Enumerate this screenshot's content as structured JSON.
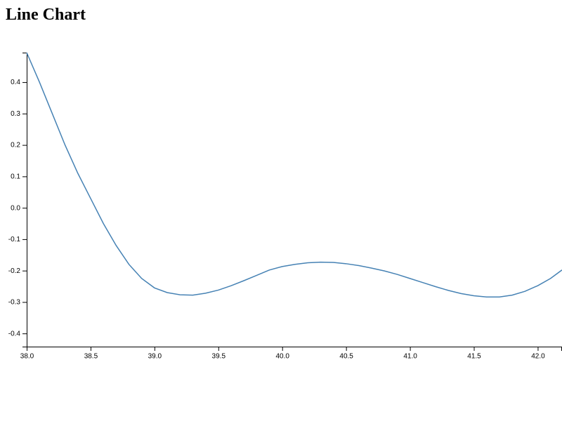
{
  "chart_data": {
    "type": "line",
    "title": "Line Chart",
    "x": [
      38.0,
      38.1,
      38.2,
      38.3,
      38.4,
      38.5,
      38.6,
      38.7,
      38.8,
      38.9,
      39.0,
      39.1,
      39.2,
      39.3,
      39.4,
      39.5,
      39.6,
      39.7,
      39.8,
      39.9,
      40.0,
      40.1,
      40.2,
      40.3,
      40.4,
      40.5,
      40.6,
      40.7,
      40.8,
      40.9,
      41.0,
      41.1,
      41.2,
      41.3,
      41.4,
      41.5,
      41.6,
      41.7,
      41.8,
      41.9,
      42.0,
      42.1,
      42.19
    ],
    "series": [
      {
        "color": "#4682b4",
        "values": [
          0.494,
          0.4,
          0.3,
          0.2,
          0.11,
          0.03,
          -0.05,
          -0.12,
          -0.18,
          -0.225,
          -0.255,
          -0.27,
          -0.277,
          -0.278,
          -0.272,
          -0.262,
          -0.248,
          -0.232,
          -0.215,
          -0.198,
          -0.187,
          -0.18,
          -0.175,
          -0.173,
          -0.174,
          -0.178,
          -0.184,
          -0.192,
          -0.201,
          -0.212,
          -0.225,
          -0.238,
          -0.251,
          -0.263,
          -0.273,
          -0.28,
          -0.284,
          -0.284,
          -0.278,
          -0.266,
          -0.248,
          -0.225,
          -0.198
        ]
      }
    ],
    "xlim": [
      38.0,
      42.19
    ],
    "xticks": [
      {
        "value": 38.0,
        "label": "38.0"
      },
      38.5,
      {
        "value": 39.0,
        "label": "39.0"
      },
      39.5,
      {
        "value": 40.0,
        "label": "40.0"
      },
      40.5,
      {
        "value": 41.0,
        "label": "41.0"
      },
      41.5,
      {
        "value": 42.0,
        "label": "42.0"
      }
    ],
    "ylim": [
      -0.442,
      0.494
    ],
    "yticks": [
      -0.4,
      -0.3,
      -0.2,
      -0.1,
      {
        "value": 0,
        "label": "0.0"
      },
      0.1,
      0.2,
      0.3,
      0.4
    ]
  }
}
